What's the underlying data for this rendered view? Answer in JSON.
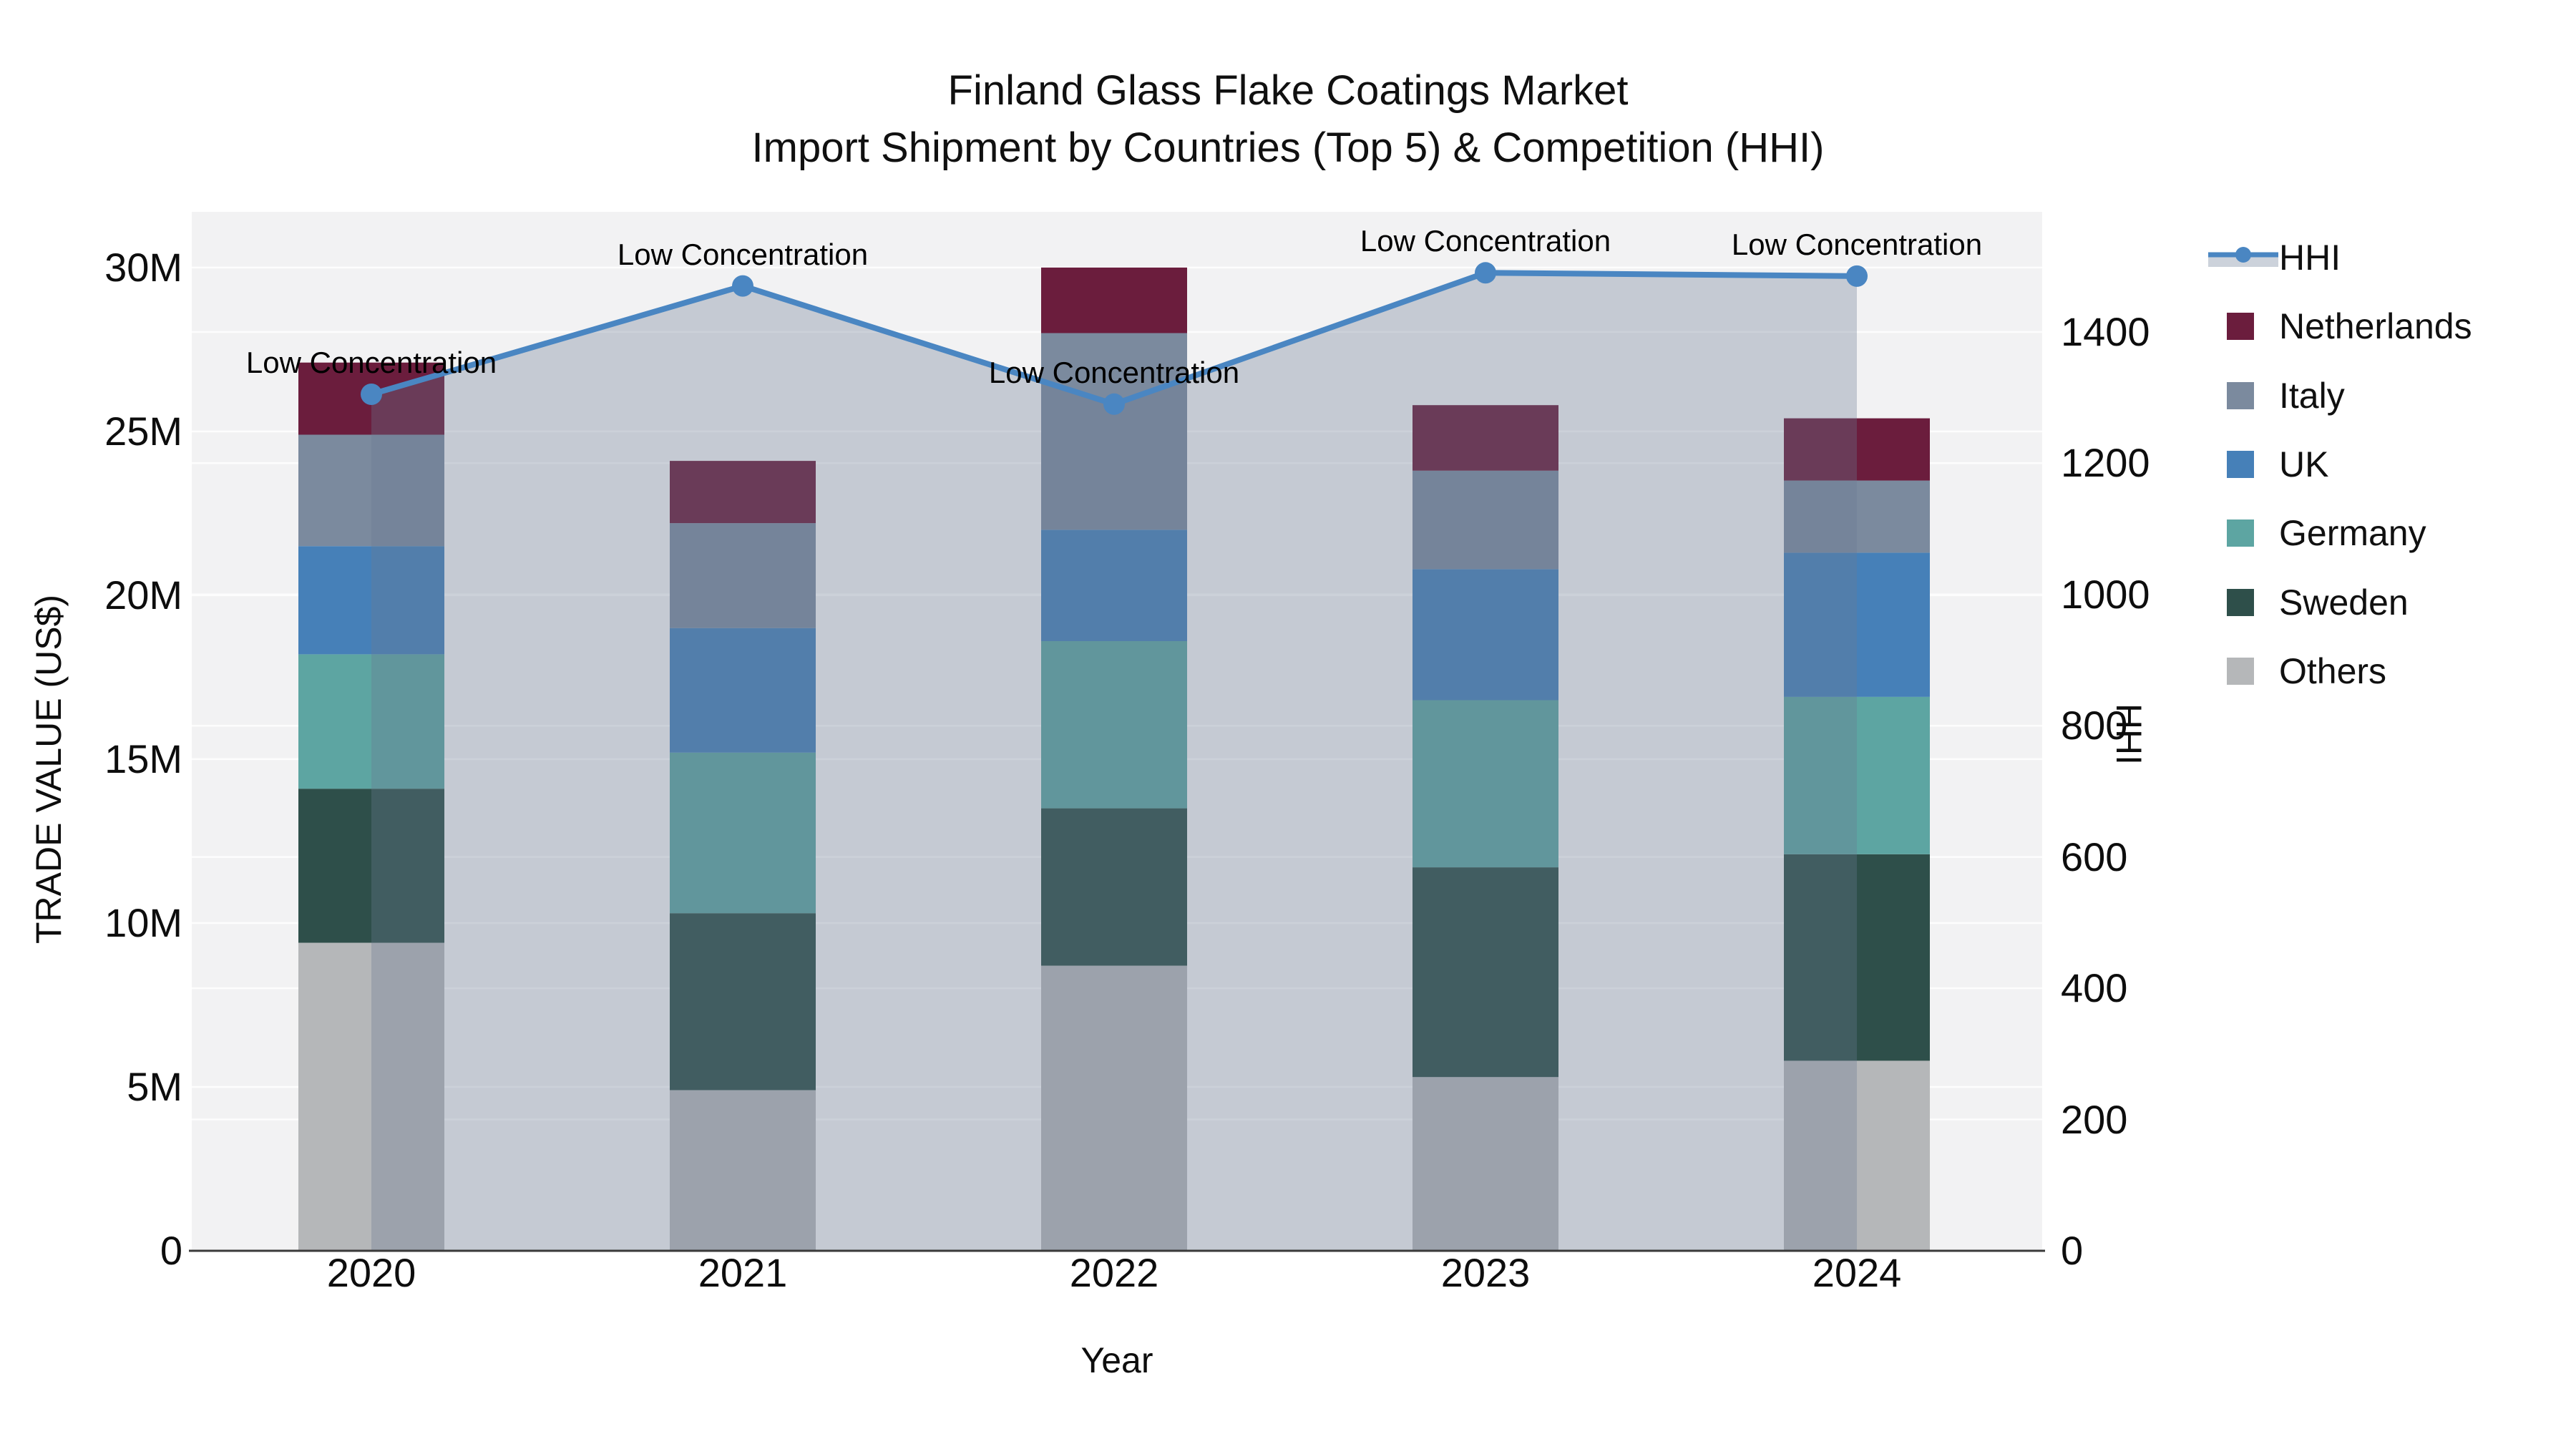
{
  "title": {
    "line1": "Finland Glass Flake Coatings Market",
    "line2": "Import Shipment by Countries (Top 5) & Competition (HHI)"
  },
  "axes": {
    "x_title": "Year",
    "y_left_title": "TRADE VALUE (US$)",
    "y_right_title": "HHI",
    "y_left_ticks": [
      {
        "label": "30M",
        "value": 30
      },
      {
        "label": "25M",
        "value": 25
      },
      {
        "label": "20M",
        "value": 20
      },
      {
        "label": "15M",
        "value": 15
      },
      {
        "label": "10M",
        "value": 10
      },
      {
        "label": "5M",
        "value": 5
      },
      {
        "label": "0",
        "value": 0
      }
    ],
    "y_right_ticks": [
      {
        "label": "0",
        "value": 0
      },
      {
        "label": "200",
        "value": 200
      },
      {
        "label": "400",
        "value": 400
      },
      {
        "label": "600",
        "value": 600
      },
      {
        "label": "800",
        "value": 800
      },
      {
        "label": "1000",
        "value": 1000
      },
      {
        "label": "1200",
        "value": 1200
      },
      {
        "label": "1400",
        "value": 1400
      }
    ]
  },
  "legend": [
    {
      "label": "HHI",
      "type": "line",
      "color": "#4a86c2"
    },
    {
      "label": "Netherlands",
      "type": "swatch",
      "color": "#6b1d3d"
    },
    {
      "label": "Italy",
      "type": "swatch",
      "color": "#7b8a9e"
    },
    {
      "label": "UK",
      "type": "swatch",
      "color": "#4680b8"
    },
    {
      "label": "Germany",
      "type": "swatch",
      "color": "#5da5a2"
    },
    {
      "label": "Sweden",
      "type": "swatch",
      "color": "#2e4f4a"
    },
    {
      "label": "Others",
      "type": "swatch",
      "color": "#b5b7b9"
    }
  ],
  "colors": {
    "plot_bg": "#f2f2f3",
    "grid": "#ffffff",
    "spine": "#3a3a3a",
    "hhi_line": "#4a86c2",
    "hhi_area_fill": "rgba(105,120,145,0.33)",
    "legend_hhi_band": "#ccd2db"
  },
  "chart_data": {
    "type": "bar+line",
    "title": "Finland Glass Flake Coatings Market — Import Shipment by Countries (Top 5) & Competition (HHI)",
    "categories": [
      "2020",
      "2021",
      "2022",
      "2023",
      "2024"
    ],
    "xlabel": "Year",
    "ylabel_left": "TRADE VALUE (US$)",
    "ylabel_right": "HHI",
    "ylim_left": [
      0,
      31.7
    ],
    "ylim_right": [
      0,
      1583
    ],
    "bar_unit": "M US$",
    "stack_order_bottom_to_top": [
      "Others",
      "Sweden",
      "Germany",
      "UK",
      "Italy",
      "Netherlands"
    ],
    "series": [
      {
        "name": "Others",
        "color": "#b5b7b9",
        "values": [
          9.4,
          4.9,
          8.7,
          5.3,
          5.8
        ]
      },
      {
        "name": "Sweden",
        "color": "#2e4f4a",
        "values": [
          4.7,
          5.4,
          4.8,
          6.4,
          6.3
        ]
      },
      {
        "name": "Germany",
        "color": "#5da5a2",
        "values": [
          4.1,
          4.9,
          5.1,
          5.1,
          4.8
        ]
      },
      {
        "name": "UK",
        "color": "#4680b8",
        "values": [
          3.3,
          3.8,
          3.4,
          4.0,
          4.4
        ]
      },
      {
        "name": "Italy",
        "color": "#7b8a9e",
        "values": [
          3.4,
          3.2,
          6.0,
          3.0,
          2.2
        ]
      },
      {
        "name": "Netherlands",
        "color": "#6b1d3d",
        "values": [
          2.2,
          1.9,
          2.0,
          2.0,
          1.9
        ]
      }
    ],
    "bar_totals": [
      27.1,
      24.1,
      30.0,
      25.8,
      25.4
    ],
    "line_series": {
      "name": "HHI",
      "axis": "right",
      "color": "#4a86c2",
      "values": [
        1305,
        1470,
        1290,
        1490,
        1485
      ],
      "annotations": [
        "Low Concentration",
        "Low Concentration",
        "Low Concentration",
        "Low Concentration",
        "Low Concentration"
      ]
    },
    "legend_position": "right",
    "grid": true
  }
}
